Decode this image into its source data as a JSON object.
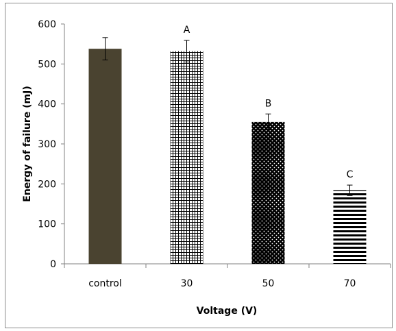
{
  "chart_data": {
    "type": "bar",
    "title": "",
    "xlabel": "Voltage (V)",
    "ylabel": "Energy of failure (mJ)",
    "ylim": [
      0,
      600
    ],
    "yticks": [
      "0",
      "100",
      "200",
      "300",
      "400",
      "500",
      "600"
    ],
    "categories": [
      "control",
      "30",
      "50",
      "70"
    ],
    "values": [
      538,
      532,
      355,
      184
    ],
    "errors": [
      28,
      27,
      20,
      13
    ],
    "annotations": [
      "",
      "A",
      "B",
      "C"
    ],
    "fills": [
      "solid-dark-olive",
      "grid-pattern",
      "dotted-pattern",
      "horizontal-stripes"
    ],
    "colors": {
      "control_bar": "#4a4330",
      "pattern_ink": "#000000",
      "axis": "#808080",
      "frame": "#8a8a8a"
    },
    "grid": false,
    "legend": "none"
  }
}
